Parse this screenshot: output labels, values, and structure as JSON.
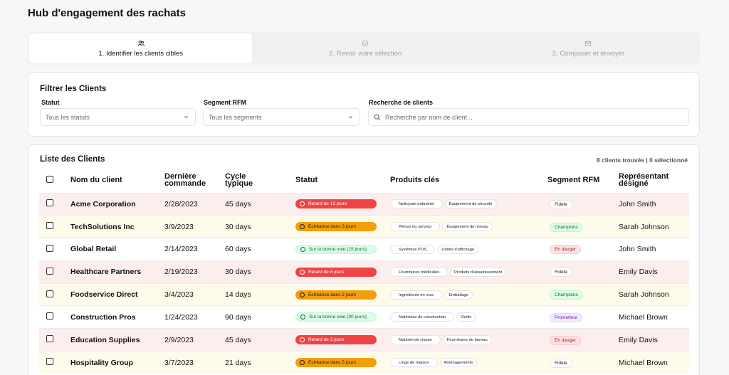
{
  "app_title": "Hub d'engagement des rachats",
  "steps": [
    {
      "num": "1.",
      "label": "Identifier les clients cibles",
      "icon": "users-icon",
      "active": true
    },
    {
      "num": "2.",
      "label": "Revoir votre sélection",
      "icon": "check-circle-icon",
      "active": false
    },
    {
      "num": "3.",
      "label": "Composer et envoyer",
      "icon": "mail-icon",
      "active": false
    }
  ],
  "filters": {
    "title": "Filtrer les Clients",
    "status_label": "Statut",
    "status_value": "Tous les statuts",
    "segment_label": "Segment RFM",
    "segment_value": "Tous les segments",
    "search_label": "Recherche de clients",
    "search_placeholder": "Recherche par nom de client..."
  },
  "list": {
    "title": "Liste des Clients",
    "count": "8 clients trouvés | 0 sélectionné",
    "headers": {
      "name": "Nom du client",
      "last_order_1": "Dernière",
      "last_order_2": "commande",
      "cycle_1": "Cycle",
      "cycle_2": "typique",
      "status": "Statut",
      "products": "Produits clés",
      "segment": "Segment RFM",
      "rep_1": "Représentant",
      "rep_2": "désigné"
    },
    "rows": [
      {
        "name": "Acme Corporation",
        "last": "2/28/2023",
        "cycle": "45 days",
        "status": "Retard de 12 jours",
        "status_type": "red",
        "products": [
          "Nettoyant industriel",
          "Équipement de sécurité"
        ],
        "segment": "Fidèle",
        "segment_type": "fidele",
        "rep": "John Smith",
        "row": "red"
      },
      {
        "name": "TechSolutions Inc",
        "last": "3/9/2023",
        "cycle": "30 days",
        "status": "Échéance dans 3 jours",
        "status_type": "orange",
        "products": [
          "Pièces du serveur",
          "Équipement de réseau"
        ],
        "segment": "Champions",
        "segment_type": "champ",
        "rep": "Sarah Johnson",
        "row": "yel"
      },
      {
        "name": "Global Retail",
        "last": "2/14/2023",
        "cycle": "60 days",
        "status": "Sur la bonne voie (15 jours)",
        "status_type": "green",
        "products": [
          "Systèmes POS",
          "Unités d'affichage"
        ],
        "segment": "En danger",
        "segment_type": "danger",
        "rep": "John Smith",
        "row": "wht"
      },
      {
        "name": "Healthcare Partners",
        "last": "2/19/2023",
        "cycle": "30 days",
        "status": "Retard de 8 jours",
        "status_type": "red",
        "products": [
          "Fournitures médicales",
          "Produits d'assainissement"
        ],
        "segment": "Fidèle",
        "segment_type": "fidele",
        "rep": "Emily Davis",
        "row": "red"
      },
      {
        "name": "Foodservice Direct",
        "last": "3/4/2023",
        "cycle": "14 days",
        "status": "Échéance dans 2 jours",
        "status_type": "orange",
        "products": [
          "Ingrédients en vrac",
          "Emballage"
        ],
        "segment": "Champions",
        "segment_type": "champ",
        "rep": "Sarah Johnson",
        "row": "yel"
      },
      {
        "name": "Construction Pros",
        "last": "1/24/2023",
        "cycle": "90 days",
        "status": "Sur la bonne voie (30 jours)",
        "status_type": "green",
        "products": [
          "Matériaux de construction",
          "Outils"
        ],
        "segment": "Prometteur",
        "segment_type": "promo",
        "rep": "Michael Brown",
        "row": "wht"
      },
      {
        "name": "Education Supplies",
        "last": "2/9/2023",
        "cycle": "45 days",
        "status": "Retard de 3 jours",
        "status_type": "red",
        "products": [
          "Matériel de classe",
          "Fournitures de bureau"
        ],
        "segment": "En danger",
        "segment_type": "danger",
        "rep": "Emily Davis",
        "row": "red"
      },
      {
        "name": "Hospitality Group",
        "last": "3/7/2023",
        "cycle": "21 days",
        "status": "Échéance dans 5 jours",
        "status_type": "orange",
        "products": [
          "Linge de maison",
          "Aménagements"
        ],
        "segment": "Fidèle",
        "segment_type": "fidele",
        "rep": "Michael Brown",
        "row": "yel"
      }
    ]
  },
  "colors": {
    "red_status": "#ef4444",
    "orange_status": "#f59e0b",
    "green_status": "#dcfce7",
    "row_red": "#fdeeee",
    "row_yellow": "#fffbea"
  }
}
